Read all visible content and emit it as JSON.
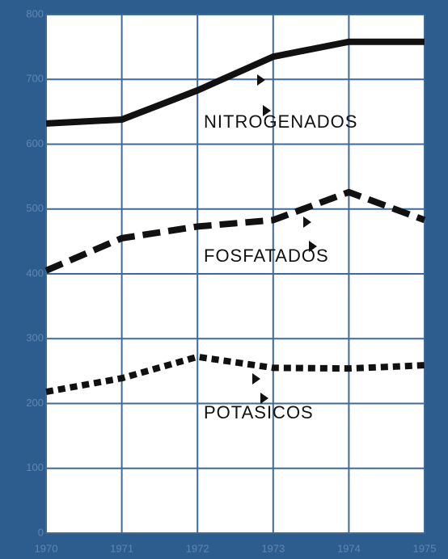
{
  "chart_data": {
    "type": "line",
    "categories": [
      "1970",
      "1971",
      "1972",
      "1973",
      "1974",
      "1975"
    ],
    "series": [
      {
        "name": "NITROGENADOS",
        "color": "#111111",
        "style": "solid",
        "values": [
          632,
          638,
          683,
          735,
          758,
          758
        ]
      },
      {
        "name": "FOSFATADOS",
        "color": "#111111",
        "style": "dashed",
        "values": [
          405,
          455,
          473,
          483,
          526,
          483
        ]
      },
      {
        "name": "POTASICOS",
        "color": "#111111",
        "style": "dotted",
        "values": [
          218,
          239,
          272,
          255,
          254,
          259
        ]
      }
    ],
    "ylim": [
      0,
      800
    ],
    "yticks": [
      0,
      100,
      200,
      300,
      400,
      500,
      600,
      700,
      800
    ],
    "grid": true
  }
}
